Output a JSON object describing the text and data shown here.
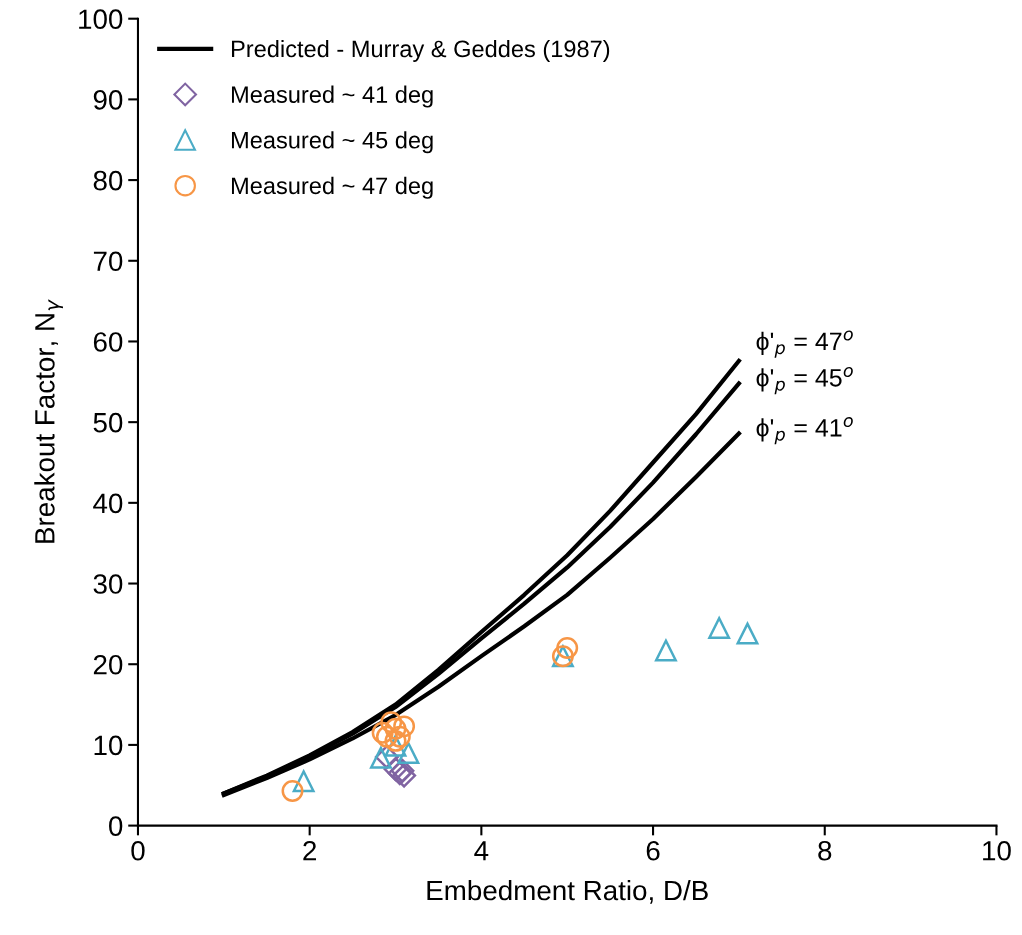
{
  "chart_data": {
    "type": "scatter",
    "xlabel": "Embedment Ratio, D/B",
    "ylabel": "Breakout Factor, N$_{γ}$",
    "xlim": [
      0,
      10
    ],
    "xticks": [
      0,
      2,
      4,
      6,
      8,
      10
    ],
    "ylim": [
      0,
      100
    ],
    "yticks": [
      0,
      10,
      20,
      30,
      40,
      50,
      60,
      70,
      80,
      90,
      100
    ],
    "grid": false,
    "legend": "top left",
    "series": [
      {
        "type": "line",
        "name": "Predicted - Murray & Geddes (1987)",
        "color": "#000000",
        "x": [
          1,
          1.5,
          2,
          2.5,
          3,
          3.5,
          4,
          4.5,
          5,
          5.5,
          6,
          6.5,
          7
        ],
        "values": [
          4,
          6.2,
          8.7,
          11.6,
          15,
          19.3,
          24,
          28.6,
          33.5,
          39,
          45,
          51,
          57.6
        ]
      },
      {
        "type": "line",
        "color": "#000000",
        "x": [
          1,
          1.5,
          2,
          2.5,
          3,
          3.5,
          4,
          4.5,
          5,
          5.5,
          6,
          6.5,
          7
        ],
        "values": [
          4,
          6.1,
          8.6,
          11.4,
          14.7,
          18.8,
          23.2,
          27.5,
          32,
          37,
          42.5,
          48.5,
          54.8
        ]
      },
      {
        "type": "line",
        "color": "#000000",
        "x": [
          1,
          1.5,
          2,
          2.5,
          3,
          3.5,
          4,
          4.5,
          5,
          5.5,
          6,
          6.5,
          7
        ],
        "values": [
          3.8,
          5.9,
          8.2,
          10.8,
          13.7,
          17.2,
          21,
          24.7,
          28.6,
          33.2,
          38,
          43.2,
          48.6
        ]
      },
      {
        "name": "Measured ~ 41 deg",
        "color": "#8064a2",
        "marker": "diamond",
        "x": [
          2.9,
          3.0,
          3.05,
          3.1,
          3.08
        ],
        "values": [
          8.5,
          7.0,
          6.5,
          6.2,
          6.8
        ]
      },
      {
        "name": "Measured ~ 45 deg",
        "color": "#4bacc6",
        "marker": "triangle",
        "x": [
          1.93,
          2.83,
          3.0,
          3.15,
          4.95,
          6.15,
          6.77,
          7.1
        ],
        "values": [
          5.5,
          8.4,
          9.9,
          9.0,
          21,
          21.7,
          24.5,
          23.8
        ]
      },
      {
        "name": "Measured ~ 47 deg",
        "color": "#f79646",
        "marker": "circle",
        "x": [
          1.8,
          2.85,
          2.9,
          2.95,
          3.0,
          3.05,
          3.1,
          3.0,
          4.95,
          5.0
        ],
        "values": [
          4.3,
          11.5,
          11,
          12.8,
          12,
          11,
          12.3,
          10.5,
          21,
          22
        ]
      }
    ],
    "annotations": [
      "ϕ'$_{p}$ = 47$^{o}$",
      "ϕ'$_{p}$ = 45$^{o}$",
      "ϕ'$_{p}$ = 41$^{o}$"
    ]
  }
}
